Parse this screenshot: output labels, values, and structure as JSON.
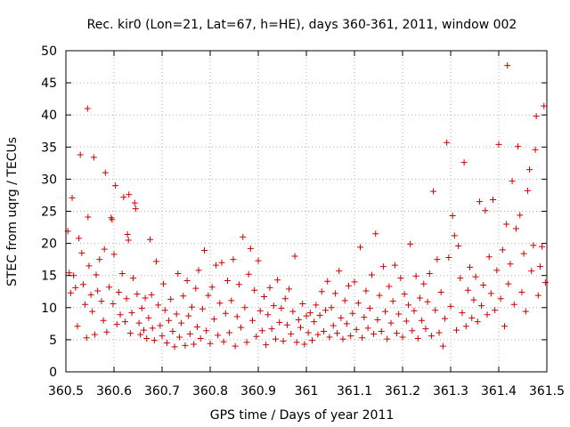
{
  "chart_data": {
    "type": "scatter",
    "title": "Rec. kir0 (Lon=21, Lat=67, h=HE), days 360-361, 2011, window 002",
    "xlabel": "GPS time / Days of year 2011",
    "ylabel": "STEC from uqrg / TECUs",
    "xlim": [
      360.5,
      361.5
    ],
    "ylim": [
      0,
      50
    ],
    "x_ticks": [
      "360.5",
      "360.6",
      "360.7",
      "360.8",
      "360.9",
      "361",
      "361.1",
      "361.2",
      "361.3",
      "361.4",
      "361.5"
    ],
    "y_ticks": [
      "0",
      "5",
      "10",
      "15",
      "20",
      "25",
      "30",
      "35",
      "40",
      "45",
      "50"
    ],
    "grid": true,
    "marker": "+",
    "color": "#cc0000",
    "series": [
      {
        "points": [
          [
            360.504,
            21.9
          ],
          [
            360.507,
            15.4
          ],
          [
            360.51,
            12.3
          ],
          [
            360.513,
            27.1
          ],
          [
            360.516,
            15.0
          ],
          [
            360.52,
            13.1
          ],
          [
            360.524,
            7.1
          ],
          [
            360.527,
            20.8
          ],
          [
            360.53,
            33.8
          ],
          [
            360.533,
            18.5
          ],
          [
            360.536,
            13.6
          ],
          [
            360.54,
            10.5
          ],
          [
            360.543,
            5.3
          ],
          [
            360.545,
            41.0
          ],
          [
            360.546,
            24.1
          ],
          [
            360.548,
            16.5
          ],
          [
            360.552,
            12.0
          ],
          [
            360.555,
            9.4
          ],
          [
            360.558,
            33.4
          ],
          [
            360.56,
            5.8
          ],
          [
            360.563,
            15.1
          ],
          [
            360.566,
            12.6
          ],
          [
            360.57,
            17.5
          ],
          [
            360.574,
            11.0
          ],
          [
            360.578,
            8.0
          ],
          [
            360.58,
            19.1
          ],
          [
            360.582,
            31.0
          ],
          [
            360.585,
            6.2
          ],
          [
            360.59,
            13.2
          ],
          [
            360.594,
            24.0
          ],
          [
            360.596,
            23.7
          ],
          [
            360.598,
            10.6
          ],
          [
            360.6,
            18.3
          ],
          [
            360.603,
            29.0
          ],
          [
            360.606,
            7.4
          ],
          [
            360.61,
            12.4
          ],
          [
            360.613,
            8.9
          ],
          [
            360.617,
            15.3
          ],
          [
            360.62,
            27.2
          ],
          [
            360.623,
            7.8
          ],
          [
            360.626,
            11.4
          ],
          [
            360.628,
            21.4
          ],
          [
            360.63,
            20.5
          ],
          [
            360.631,
            27.6
          ],
          [
            360.634,
            6.0
          ],
          [
            360.637,
            9.2
          ],
          [
            360.64,
            14.6
          ],
          [
            360.643,
            26.3
          ],
          [
            360.645,
            25.4
          ],
          [
            360.648,
            12.1
          ],
          [
            360.652,
            7.6
          ],
          [
            360.655,
            5.8
          ],
          [
            360.658,
            9.9
          ],
          [
            360.662,
            6.5
          ],
          [
            360.665,
            11.5
          ],
          [
            360.668,
            5.2
          ],
          [
            360.672,
            8.4
          ],
          [
            360.675,
            20.6
          ],
          [
            360.678,
            12.0
          ],
          [
            360.68,
            6.8
          ],
          [
            360.684,
            4.9
          ],
          [
            360.688,
            17.2
          ],
          [
            360.692,
            10.4
          ],
          [
            360.696,
            7.2
          ],
          [
            360.7,
            5.6
          ],
          [
            360.703,
            13.7
          ],
          [
            360.706,
            9.6
          ],
          [
            360.71,
            4.5
          ],
          [
            360.714,
            8.0
          ],
          [
            360.718,
            11.3
          ],
          [
            360.722,
            6.3
          ],
          [
            360.726,
            3.9
          ],
          [
            360.73,
            9.0
          ],
          [
            360.733,
            15.3
          ],
          [
            360.736,
            5.4
          ],
          [
            360.74,
            7.6
          ],
          [
            360.744,
            11.8
          ],
          [
            360.748,
            4.1
          ],
          [
            360.752,
            14.2
          ],
          [
            360.755,
            8.7
          ],
          [
            360.758,
            5.9
          ],
          [
            360.762,
            10.1
          ],
          [
            360.766,
            4.3
          ],
          [
            360.77,
            13.0
          ],
          [
            360.773,
            7.0
          ],
          [
            360.776,
            15.8
          ],
          [
            360.78,
            5.2
          ],
          [
            360.784,
            9.8
          ],
          [
            360.788,
            18.9
          ],
          [
            360.792,
            6.4
          ],
          [
            360.796,
            11.9
          ],
          [
            360.8,
            4.4
          ],
          [
            360.804,
            13.2
          ],
          [
            360.808,
            8.2
          ],
          [
            360.812,
            16.6
          ],
          [
            360.816,
            5.7
          ],
          [
            360.82,
            10.7
          ],
          [
            360.824,
            17.0
          ],
          [
            360.828,
            4.7
          ],
          [
            360.832,
            9.1
          ],
          [
            360.836,
            14.2
          ],
          [
            360.84,
            6.1
          ],
          [
            360.844,
            11.1
          ],
          [
            360.848,
            17.5
          ],
          [
            360.852,
            4.0
          ],
          [
            360.856,
            8.6
          ],
          [
            360.86,
            13.6
          ],
          [
            360.864,
            6.9
          ],
          [
            360.868,
            21.0
          ],
          [
            360.872,
            10.0
          ],
          [
            360.876,
            4.6
          ],
          [
            360.88,
            15.2
          ],
          [
            360.884,
            19.2
          ],
          [
            360.888,
            8.0
          ],
          [
            360.892,
            12.7
          ],
          [
            360.896,
            5.5
          ],
          [
            360.9,
            17.3
          ],
          [
            360.904,
            9.5
          ],
          [
            360.908,
            6.4
          ],
          [
            360.912,
            11.7
          ],
          [
            360.916,
            4.2
          ],
          [
            360.92,
            8.9
          ],
          [
            360.924,
            13.1
          ],
          [
            360.928,
            6.7
          ],
          [
            360.932,
            10.3
          ],
          [
            360.936,
            5.1
          ],
          [
            360.94,
            14.3
          ],
          [
            360.944,
            7.7
          ],
          [
            360.948,
            9.9
          ],
          [
            360.952,
            4.8
          ],
          [
            360.956,
            11.4
          ],
          [
            360.96,
            7.3
          ],
          [
            360.964,
            12.9
          ],
          [
            360.968,
            5.9
          ],
          [
            360.972,
            9.4
          ],
          [
            360.976,
            18.0
          ],
          [
            360.98,
            4.6
          ],
          [
            360.984,
            8.1
          ],
          [
            360.988,
            6.9
          ],
          [
            360.992,
            10.6
          ],
          [
            360.996,
            4.3
          ],
          [
            361.0,
            8.7
          ],
          [
            361.004,
            6.1
          ],
          [
            361.008,
            9.2
          ],
          [
            361.012,
            4.9
          ],
          [
            361.016,
            7.8
          ],
          [
            361.02,
            10.4
          ],
          [
            361.024,
            5.8
          ],
          [
            361.028,
            8.8
          ],
          [
            361.032,
            12.5
          ],
          [
            361.036,
            6.3
          ],
          [
            361.04,
            9.6
          ],
          [
            361.044,
            14.1
          ],
          [
            361.048,
            5.4
          ],
          [
            361.052,
            10.0
          ],
          [
            361.056,
            7.2
          ],
          [
            361.06,
            12.2
          ],
          [
            361.064,
            6.0
          ],
          [
            361.068,
            15.7
          ],
          [
            361.072,
            8.4
          ],
          [
            361.076,
            5.1
          ],
          [
            361.08,
            11.1
          ],
          [
            361.084,
            7.5
          ],
          [
            361.088,
            13.4
          ],
          [
            361.092,
            5.6
          ],
          [
            361.096,
            9.1
          ],
          [
            361.1,
            14.0
          ],
          [
            361.104,
            6.6
          ],
          [
            361.108,
            10.7
          ],
          [
            361.112,
            19.4
          ],
          [
            361.116,
            5.3
          ],
          [
            361.12,
            8.5
          ],
          [
            361.124,
            12.6
          ],
          [
            361.128,
            6.8
          ],
          [
            361.132,
            9.9
          ],
          [
            361.136,
            15.1
          ],
          [
            361.14,
            5.9
          ],
          [
            361.144,
            21.5
          ],
          [
            361.148,
            8.1
          ],
          [
            361.152,
            11.9
          ],
          [
            361.156,
            6.3
          ],
          [
            361.16,
            16.4
          ],
          [
            361.164,
            9.4
          ],
          [
            361.168,
            5.1
          ],
          [
            361.172,
            13.3
          ],
          [
            361.176,
            7.6
          ],
          [
            361.18,
            11.0
          ],
          [
            361.184,
            16.6
          ],
          [
            361.188,
            6.0
          ],
          [
            361.192,
            9.0
          ],
          [
            361.196,
            14.6
          ],
          [
            361.2,
            5.4
          ],
          [
            361.204,
            12.1
          ],
          [
            361.208,
            7.9
          ],
          [
            361.212,
            10.4
          ],
          [
            361.216,
            19.9
          ],
          [
            361.22,
            6.4
          ],
          [
            361.224,
            9.5
          ],
          [
            361.228,
            14.9
          ],
          [
            361.232,
            5.2
          ],
          [
            361.236,
            11.5
          ],
          [
            361.24,
            8.0
          ],
          [
            361.244,
            13.7
          ],
          [
            361.248,
            6.7
          ],
          [
            361.252,
            10.9
          ],
          [
            361.256,
            15.3
          ],
          [
            361.26,
            5.6
          ],
          [
            361.264,
            28.1
          ],
          [
            361.268,
            9.6
          ],
          [
            361.272,
            17.5
          ],
          [
            361.276,
            6.1
          ],
          [
            361.28,
            12.4
          ],
          [
            361.284,
            4.0
          ],
          [
            361.288,
            8.3
          ],
          [
            361.292,
            35.7
          ],
          [
            361.296,
            17.8
          ],
          [
            361.3,
            10.2
          ],
          [
            361.304,
            24.3
          ],
          [
            361.308,
            21.2
          ],
          [
            361.312,
            6.5
          ],
          [
            361.316,
            19.6
          ],
          [
            361.32,
            14.6
          ],
          [
            361.324,
            9.2
          ],
          [
            361.328,
            32.6
          ],
          [
            361.332,
            7.1
          ],
          [
            361.336,
            12.7
          ],
          [
            361.34,
            16.3
          ],
          [
            361.344,
            8.4
          ],
          [
            361.348,
            11.2
          ],
          [
            361.352,
            14.8
          ],
          [
            361.356,
            7.8
          ],
          [
            361.36,
            26.5
          ],
          [
            361.364,
            10.3
          ],
          [
            361.368,
            13.5
          ],
          [
            361.372,
            25.1
          ],
          [
            361.376,
            8.9
          ],
          [
            361.38,
            17.9
          ],
          [
            361.384,
            12.2
          ],
          [
            361.388,
            26.8
          ],
          [
            361.392,
            9.6
          ],
          [
            361.396,
            15.8
          ],
          [
            361.4,
            35.4
          ],
          [
            361.404,
            11.4
          ],
          [
            361.408,
            19.0
          ],
          [
            361.412,
            7.1
          ],
          [
            361.416,
            23.0
          ],
          [
            361.418,
            47.7
          ],
          [
            361.42,
            13.7
          ],
          [
            361.424,
            16.8
          ],
          [
            361.428,
            29.7
          ],
          [
            361.432,
            10.5
          ],
          [
            361.436,
            22.3
          ],
          [
            361.44,
            35.1
          ],
          [
            361.444,
            24.4
          ],
          [
            361.448,
            12.4
          ],
          [
            361.452,
            18.4
          ],
          [
            361.456,
            9.4
          ],
          [
            361.46,
            28.2
          ],
          [
            361.464,
            31.5
          ],
          [
            361.468,
            15.7
          ],
          [
            361.472,
            19.7
          ],
          [
            361.476,
            34.6
          ],
          [
            361.478,
            39.8
          ],
          [
            361.482,
            11.9
          ],
          [
            361.486,
            16.4
          ],
          [
            361.49,
            19.5
          ],
          [
            361.494,
            41.4
          ],
          [
            361.497,
            13.9
          ]
        ]
      }
    ]
  }
}
